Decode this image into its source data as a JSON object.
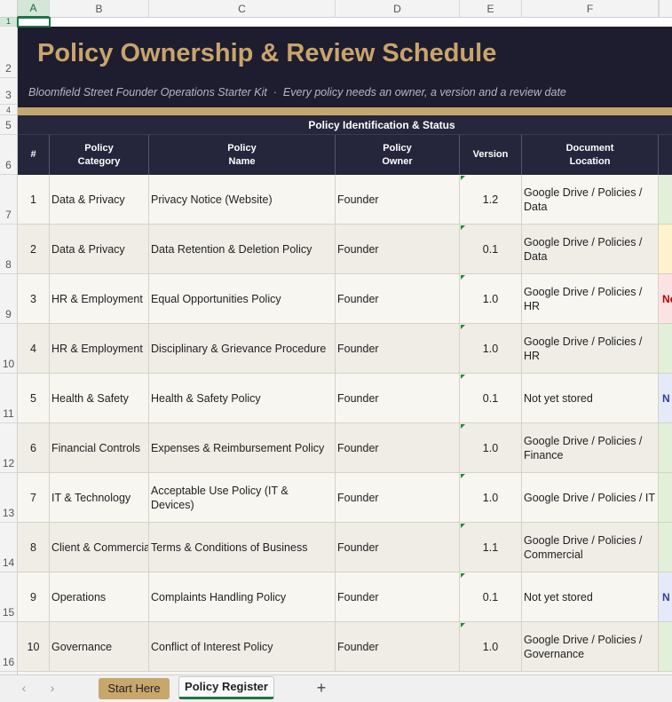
{
  "spreadsheet": {
    "column_letters": [
      "A",
      "B",
      "C",
      "D",
      "E",
      "F"
    ],
    "row_numbers": [
      1,
      2,
      3,
      4,
      5,
      6,
      7,
      8,
      9,
      10,
      11,
      12,
      13,
      14,
      15,
      16
    ],
    "title": "Policy Ownership & Review Schedule",
    "subtitle": "Bloomfield Street Founder Operations Starter Kit  ·  Every policy needs an owner, a version and a review date",
    "section_header": "Policy Identification & Status",
    "headers": [
      "#",
      "Policy\nCategory",
      "Policy\nName",
      "Policy\nOwner",
      "Version",
      "Document\nLocation"
    ],
    "rows": [
      {
        "cells": [
          1,
          "Data & Privacy",
          "Privacy Notice (Website)",
          "Founder",
          "1.2",
          "Google Drive / Policies /\nData"
        ],
        "status_fill": "#e2f0d9"
      },
      {
        "cells": [
          2,
          "Data & Privacy",
          "Data Retention & Deletion Policy",
          "Founder",
          "0.1",
          "Google Drive / Policies /\nData"
        ],
        "status_fill": "#fff2cc"
      },
      {
        "cells": [
          3,
          "HR & Employment",
          "Equal Opportunities Policy",
          "Founder",
          "1.0",
          "Google Drive / Policies /\nHR"
        ],
        "status_fill": "#fbe3e3",
        "status": "Ne",
        "status_color": "#c00000"
      },
      {
        "cells": [
          4,
          "HR & Employment",
          "Disciplinary & Grievance Procedure",
          "Founder",
          "1.0",
          "Google Drive / Policies /\nHR"
        ],
        "status_fill": "#e2f0d9"
      },
      {
        "cells": [
          5,
          "Health & Safety",
          "Health & Safety Policy",
          "Founder",
          "0.1",
          "Not yet stored"
        ],
        "status_fill": "#e6e9f8",
        "status": "N",
        "status_color": "#2f3f9e"
      },
      {
        "cells": [
          6,
          "Financial Controls",
          "Expenses & Reimbursement Policy",
          "Founder",
          "1.0",
          "Google Drive / Policies /\nFinance"
        ],
        "status_fill": "#e2f0d9"
      },
      {
        "cells": [
          7,
          "IT & Technology",
          "Acceptable Use Policy (IT & Devices)",
          "Founder",
          "1.0",
          "Google Drive / Policies / IT"
        ],
        "status_fill": "#e2f0d9"
      },
      {
        "cells": [
          8,
          "Client & Commercial",
          "Terms & Conditions of Business",
          "Founder",
          "1.1",
          "Google Drive / Policies /\nCommercial"
        ],
        "status_fill": "#e2f0d9"
      },
      {
        "cells": [
          9,
          "Operations",
          "Complaints Handling Policy",
          "Founder",
          "0.1",
          "Not yet stored"
        ],
        "status_fill": "#e6e9f8",
        "status": "N",
        "status_color": "#2f3f9e"
      },
      {
        "cells": [
          10,
          "Governance",
          "Conflict of Interest Policy",
          "Founder",
          "1.0",
          "Google Drive / Policies /\nGovernance"
        ],
        "status_fill": "#e2f0d9"
      }
    ],
    "tabs": [
      "Start Here",
      "Policy Register"
    ]
  }
}
